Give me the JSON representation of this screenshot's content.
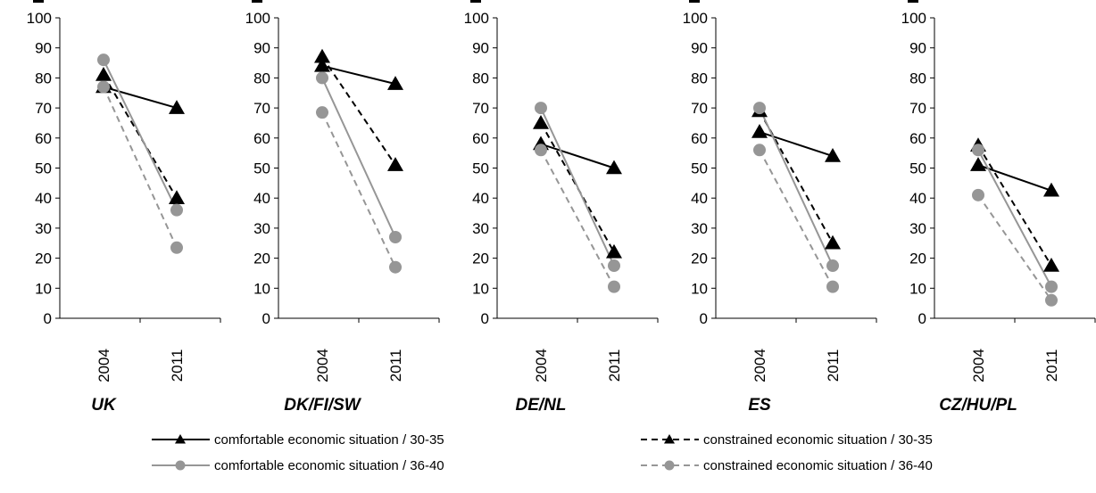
{
  "chart_data": {
    "type": "line",
    "x_categories": [
      "2004",
      "2011"
    ],
    "ylim": [
      0,
      100
    ],
    "yticks": [
      "0",
      "10",
      "20",
      "30",
      "40",
      "50",
      "60",
      "70",
      "80",
      "90",
      "100"
    ],
    "legend_placement": "bottom",
    "legend": [
      {
        "label": "comfortable economic situation / 30-35",
        "color": "#000000",
        "dash": "solid",
        "marker": "triangle"
      },
      {
        "label": "constrained economic situation / 30-35",
        "color": "#000000",
        "dash": "dashed",
        "marker": "triangle"
      },
      {
        "label": "comfortable economic situation / 36-40",
        "color": "#969696",
        "dash": "solid",
        "marker": "circle"
      },
      {
        "label": "constrained economic situation / 36-40",
        "color": "#969696",
        "dash": "dashed",
        "marker": "circle"
      }
    ],
    "panels": [
      {
        "label": "UK",
        "series": [
          {
            "values": [
              77,
              70
            ]
          },
          {
            "values": [
              81,
              40
            ]
          },
          {
            "values": [
              86,
              36
            ]
          },
          {
            "values": [
              77,
              23.5
            ]
          }
        ]
      },
      {
        "label": "DK/FI/SW",
        "series": [
          {
            "values": [
              84,
              78
            ]
          },
          {
            "values": [
              87,
              51
            ]
          },
          {
            "values": [
              80,
              27
            ]
          },
          {
            "values": [
              68.5,
              17
            ]
          }
        ]
      },
      {
        "label": "DE/NL",
        "series": [
          {
            "values": [
              58,
              50
            ]
          },
          {
            "values": [
              65,
              22
            ]
          },
          {
            "values": [
              70,
              17.5
            ]
          },
          {
            "values": [
              56,
              10.5
            ]
          }
        ]
      },
      {
        "label": "ES",
        "series": [
          {
            "values": [
              62,
              54
            ]
          },
          {
            "values": [
              69,
              25
            ]
          },
          {
            "values": [
              70,
              17.5
            ]
          },
          {
            "values": [
              56,
              10.5
            ]
          }
        ]
      },
      {
        "label": "CZ/HU/PL",
        "series": [
          {
            "values": [
              51,
              42.5
            ]
          },
          {
            "values": [
              57.5,
              17.5
            ]
          },
          {
            "values": [
              56,
              10.5
            ]
          },
          {
            "values": [
              41,
              6
            ]
          }
        ]
      }
    ]
  }
}
